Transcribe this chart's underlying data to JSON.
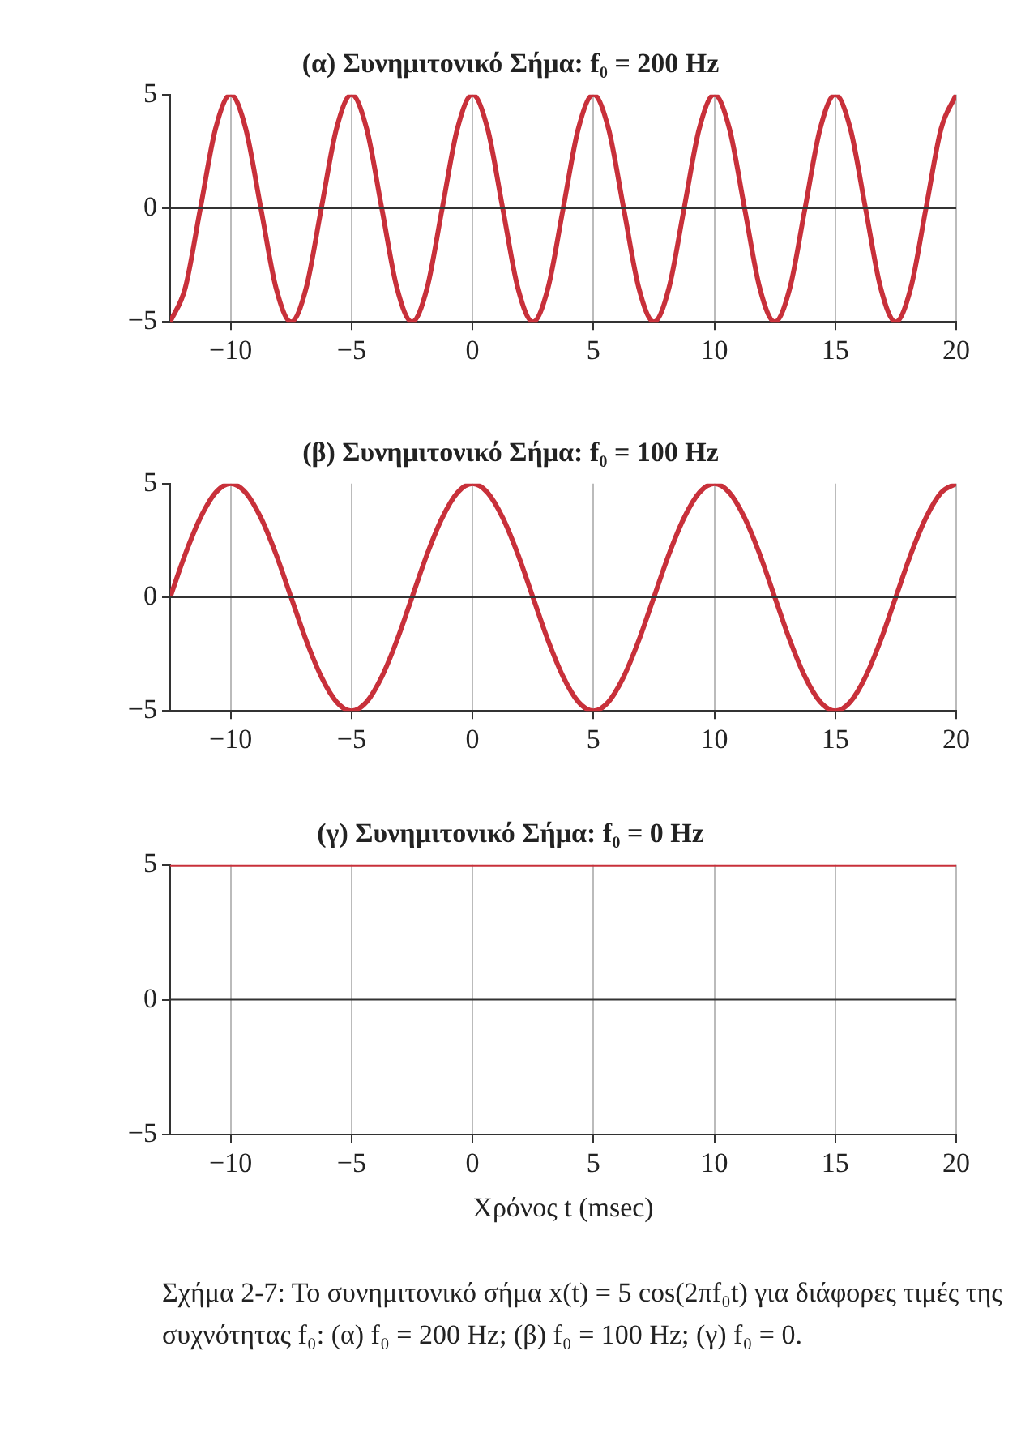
{
  "chart_data": [
    {
      "type": "line",
      "title": "(α) Συνημιτονικό Σήμα: f₀ = 200 Hz",
      "xlim": [
        -12.5,
        20
      ],
      "xticks": [
        -10,
        -5,
        0,
        5,
        10,
        15,
        20
      ],
      "ylim": [
        -5,
        5
      ],
      "yticks": [
        -5,
        0,
        5
      ],
      "grid": "x",
      "line_style": "solid",
      "marker": "none",
      "x": [
        -12.5,
        -11.875,
        -11.25,
        -10.625,
        -10,
        -9.375,
        -8.75,
        -8.125,
        -7.5,
        -6.875,
        -6.25,
        -5.625,
        -5,
        -4.375,
        -3.75,
        -3.125,
        -2.5,
        -1.875,
        -1.25,
        -0.625,
        0,
        0.625,
        1.25,
        1.875,
        2.5,
        3.125,
        3.75,
        4.375,
        5,
        5.625,
        6.25,
        6.875,
        7.5,
        8.125,
        8.75,
        9.375,
        10,
        10.625,
        11.25,
        11.875,
        12.5,
        13.125,
        13.75,
        14.375,
        15,
        15.625,
        16.25,
        16.875,
        17.5,
        18.125,
        18.75,
        19.375,
        20
      ],
      "series": [
        {
          "color": "#c8303a",
          "values": [
            -5,
            -3.5,
            0,
            3.5,
            5,
            3.5,
            0,
            -3.5,
            -5,
            -3.5,
            0,
            3.5,
            5,
            3.5,
            0,
            -3.5,
            -5,
            -3.5,
            0,
            3.5,
            5,
            3.5,
            0,
            -3.5,
            -5,
            -3.5,
            0,
            3.5,
            5,
            3.5,
            0,
            -3.5,
            -5,
            -3.5,
            0,
            3.5,
            5,
            3.5,
            0,
            -3.5,
            -5,
            -3.5,
            0,
            3.5,
            5,
            3.5,
            0,
            -3.5,
            -5,
            -3.5,
            0,
            3.5,
            5
          ]
        }
      ],
      "ref_lines": [
        {
          "axis": "y",
          "value": 0,
          "color": "#333333"
        }
      ]
    },
    {
      "type": "line",
      "title": "(β) Συνημιτονικό Σήμα: f₀ = 100 Hz",
      "xlim": [
        -12.5,
        20
      ],
      "xticks": [
        -10,
        -5,
        0,
        5,
        10,
        15,
        20
      ],
      "ylim": [
        -5,
        5
      ],
      "yticks": [
        -5,
        0,
        5
      ],
      "grid": "x",
      "line_style": "solid",
      "marker": "none",
      "x": [
        -12.5,
        -11.875,
        -11.25,
        -10.625,
        -10,
        -9.375,
        -8.75,
        -8.125,
        -7.5,
        -6.875,
        -6.25,
        -5.625,
        -5,
        -4.375,
        -3.75,
        -3.125,
        -2.5,
        -1.875,
        -1.25,
        -0.625,
        0,
        0.625,
        1.25,
        1.875,
        2.5,
        3.125,
        3.75,
        4.375,
        5,
        5.625,
        6.25,
        6.875,
        7.5,
        8.125,
        8.75,
        9.375,
        10,
        10.625,
        11.25,
        11.875,
        12.5,
        13.125,
        13.75,
        14.375,
        15,
        15.625,
        16.25,
        16.875,
        17.5,
        18.125,
        18.75,
        19.375,
        20
      ],
      "series": [
        {
          "color": "#c8303a",
          "values": [
            0,
            1.9,
            3.5,
            4.6,
            5,
            4.6,
            3.5,
            1.9,
            0,
            -1.9,
            -3.5,
            -4.6,
            -5,
            -4.6,
            -3.5,
            -1.9,
            0,
            1.9,
            3.5,
            4.6,
            5,
            4.6,
            3.5,
            1.9,
            0,
            -1.9,
            -3.5,
            -4.6,
            -5,
            -4.6,
            -3.5,
            -1.9,
            0,
            1.9,
            3.5,
            4.6,
            5,
            4.6,
            3.5,
            1.9,
            0,
            -1.9,
            -3.5,
            -4.6,
            -5,
            -4.6,
            -3.5,
            -1.9,
            0,
            1.9,
            3.5,
            4.6,
            5
          ]
        }
      ],
      "ref_lines": [
        {
          "axis": "y",
          "value": 0,
          "color": "#333333"
        }
      ]
    },
    {
      "type": "line",
      "title": "(γ) Συνημιτονικό Σήμα: f₀ = 0 Hz",
      "xlabel": "Χρόνος t (msec)",
      "xlim": [
        -12.5,
        20
      ],
      "xticks": [
        -10,
        -5,
        0,
        5,
        10,
        15,
        20
      ],
      "ylim": [
        -5,
        5
      ],
      "yticks": [
        -5,
        0,
        5
      ],
      "grid": "x",
      "line_style": "solid",
      "marker": "none",
      "x": [
        -12.5,
        20
      ],
      "series": [
        {
          "color": "#c8303a",
          "values": [
            5,
            5
          ]
        }
      ],
      "ref_lines": [
        {
          "axis": "y",
          "value": 0,
          "color": "#333333"
        }
      ],
      "annotations": [
        "Σχήμα 2-7: Το συνημιτονικό σήμα x(t) = 5 cos(2πf₀t) για διάφορες τιμές της συχνότητας f₀: (α) f₀ = 200 Hz; (β) f₀ = 100 Hz; (γ) f₀ = 0."
      ]
    }
  ]
}
